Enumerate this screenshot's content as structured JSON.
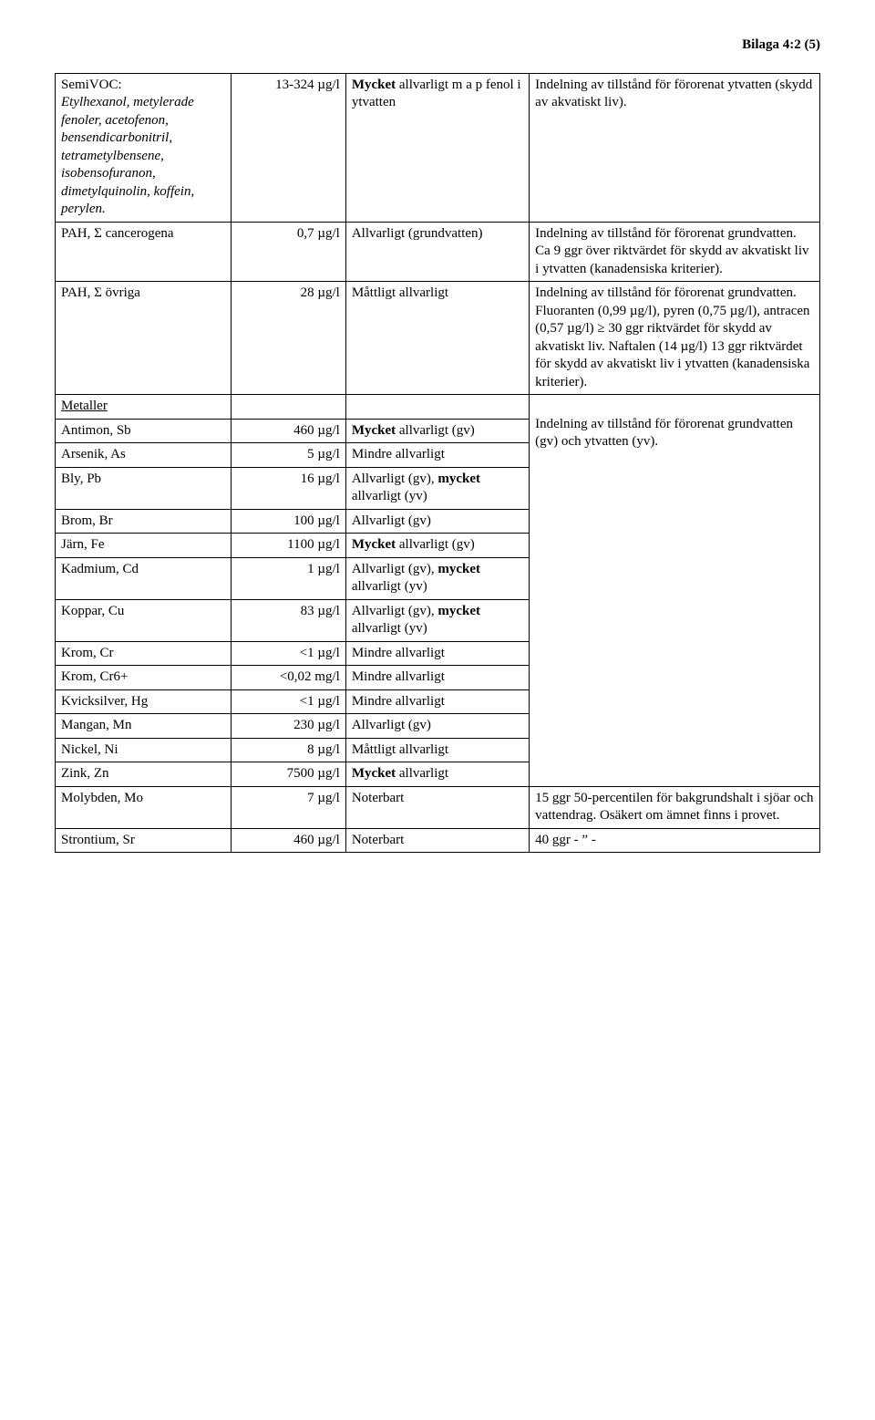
{
  "header": "Bilaga 4:2 (5)",
  "t": {
    "semivoc_name": "SemiVOC:",
    "semivoc_detail": "Etylhexanol, metylerade fenoler, acetofenon, bensendicarbonitril, tetrametylbensene, isobensofuranon, dimetylquinolin, koffein, perylen.",
    "semivoc_conc": "13-324 µg/l",
    "semivoc_rating_bold": "Mycket",
    "semivoc_rating_rest": " allvarligt m a p fenol i ytvatten",
    "semivoc_note": "Indelning av tillstånd för förorenat ytvatten (skydd av akvatiskt liv).",
    "pahc_name": "PAH, Σ cancerogena",
    "pahc_conc": "0,7 µg/l",
    "pahc_rating": "Allvarligt (grundvatten)",
    "pahc_note": "Indelning av tillstånd för förorenat grundvatten. Ca 9 ggr över riktvärdet för skydd av akvatiskt liv i ytvatten (kanadensiska kriterier).",
    "paho_name": "PAH, Σ övriga",
    "paho_conc": "28 µg/l",
    "paho_rating": "Måttligt allvarligt",
    "paho_note": "Indelning av tillstånd för förorenat grundvatten. Fluoranten (0,99 µg/l), pyren (0,75 µg/l), antracen (0,57 µg/l) ≥ 30 ggr riktvärdet för skydd av akvatiskt liv. Naftalen (14 µg/l) 13 ggr riktvärdet för skydd av akvatiskt liv i ytvatten (kanadensiska kriterier).",
    "metaller": "Metaller",
    "sb_name": "Antimon, Sb",
    "sb_conc": "460 µg/l",
    "sb_rating_b": "Mycket",
    "sb_rating_r": " allvarligt (gv)",
    "as_name": "Arsenik, As",
    "as_conc": "5 µg/l",
    "as_rating": "Mindre allvarligt",
    "pb_name": "Bly, Pb",
    "pb_conc": "16 µg/l",
    "pb_rating_a": "Allvarligt (gv), ",
    "pb_rating_b": "mycket",
    "pb_rating_c": " allvarligt (yv)",
    "br_name": "Brom, Br",
    "br_conc": "100 µg/l",
    "br_rating": "Allvarligt (gv)",
    "fe_name": "Järn, Fe",
    "fe_conc": "1100 µg/l",
    "fe_rating_b": "Mycket",
    "fe_rating_r": " allvarligt (gv)",
    "cd_name": "Kadmium, Cd",
    "cd_conc": "1 µg/l",
    "cd_rating_a": "Allvarligt (gv), ",
    "cd_rating_b": "mycket",
    "cd_rating_c": " allvarligt (yv)",
    "cu_name": "Koppar, Cu",
    "cu_conc": "83 µg/l",
    "cu_rating_a": "Allvarligt (gv), ",
    "cu_rating_b": "mycket",
    "cu_rating_c": " allvarligt (yv)",
    "cr_name": "Krom, Cr",
    "cr_conc": "<1 µg/l",
    "cr_rating": "Mindre allvarligt",
    "cr6_name": "Krom, Cr6+",
    "cr6_conc": "<0,02 mg/l",
    "cr6_rating": "Mindre allvarligt",
    "hg_name": "Kvicksilver, Hg",
    "hg_conc": "<1 µg/l",
    "hg_rating": "Mindre allvarligt",
    "mn_name": "Mangan, Mn",
    "mn_conc": "230 µg/l",
    "mn_rating": "Allvarligt (gv)",
    "ni_name": "Nickel, Ni",
    "ni_conc": "8 µg/l",
    "ni_rating": "Måttligt allvarligt",
    "zn_name": "Zink, Zn",
    "zn_conc": "7500 µg/l",
    "zn_rating_b": "Mycket",
    "zn_rating_r": " allvarligt",
    "metals_note": "Indelning av tillstånd för förorenat grundvatten (gv) och ytvatten (yv).",
    "mo_name": "Molybden, Mo",
    "mo_conc": "7 µg/l",
    "mo_rating": "Noterbart",
    "mo_note": "15 ggr 50-percentilen för bakgrundshalt i sjöar och vattendrag. Osäkert om ämnet finns i provet.",
    "sr_name": "Strontium, Sr",
    "sr_conc": "460 µg/l",
    "sr_rating": "Noterbart",
    "sr_note": "40 ggr  -  ” -"
  }
}
